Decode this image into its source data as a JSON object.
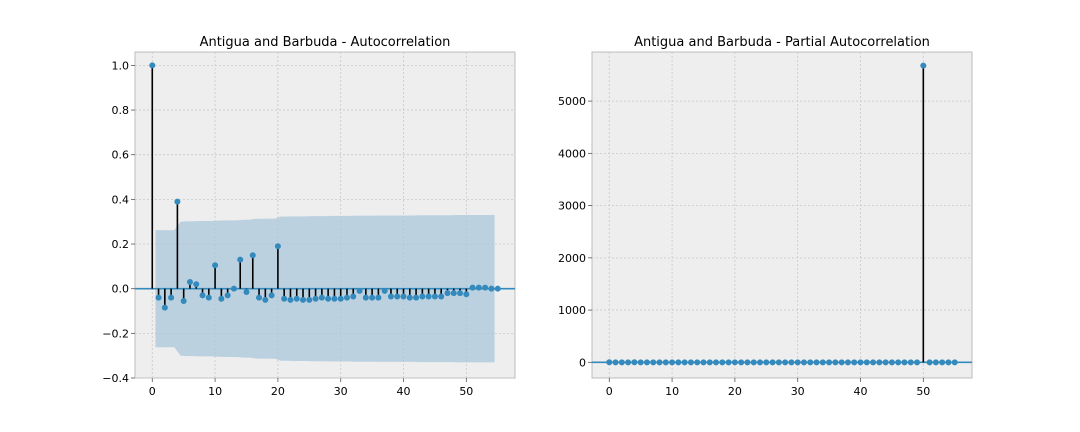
{
  "chart_data": [
    {
      "type": "stem",
      "title": "Antigua and Barbuda - Autocorrelation",
      "xlim": [
        -2.75,
        57.75
      ],
      "ylim": [
        -0.4,
        1.06
      ],
      "xticks": [
        0,
        10,
        20,
        30,
        40,
        50
      ],
      "yticks": [
        -0.4,
        -0.2,
        0.0,
        0.2,
        0.4,
        0.6,
        0.8,
        1.0
      ],
      "ytick_labels": [
        "−0.4",
        "−0.2",
        "0.0",
        "0.2",
        "0.4",
        "0.6",
        "0.8",
        "1.0"
      ],
      "lags": [
        0,
        1,
        2,
        3,
        4,
        5,
        6,
        7,
        8,
        9,
        10,
        11,
        12,
        13,
        14,
        15,
        16,
        17,
        18,
        19,
        20,
        21,
        22,
        23,
        24,
        25,
        26,
        27,
        28,
        29,
        30,
        31,
        32,
        33,
        34,
        35,
        36,
        37,
        38,
        39,
        40,
        41,
        42,
        43,
        44,
        45,
        46,
        47,
        48,
        49,
        50,
        51,
        52,
        53,
        54,
        55
      ],
      "values": [
        1.0,
        -0.04,
        -0.085,
        -0.04,
        0.39,
        -0.055,
        0.03,
        0.02,
        -0.03,
        -0.04,
        0.105,
        -0.045,
        -0.03,
        0.0,
        0.13,
        -0.015,
        0.15,
        -0.04,
        -0.05,
        -0.03,
        0.19,
        -0.045,
        -0.05,
        -0.045,
        -0.05,
        -0.05,
        -0.045,
        -0.04,
        -0.045,
        -0.045,
        -0.045,
        -0.04,
        -0.035,
        -0.01,
        -0.04,
        -0.04,
        -0.04,
        -0.01,
        -0.035,
        -0.035,
        -0.035,
        -0.04,
        -0.04,
        -0.035,
        -0.035,
        -0.035,
        -0.035,
        -0.02,
        -0.02,
        -0.02,
        -0.025,
        0.005,
        0.005,
        0.005,
        0.0,
        0.0
      ],
      "confidence_band": {
        "lags": [
          1,
          2,
          3,
          4,
          5,
          6,
          7,
          8,
          9,
          10,
          11,
          12,
          13,
          14,
          15,
          16,
          17,
          18,
          19,
          20,
          21,
          22,
          23,
          24,
          25,
          26,
          27,
          28,
          29,
          30,
          31,
          32,
          33,
          34,
          35,
          36,
          37,
          38,
          39,
          40,
          41,
          42,
          43,
          44,
          45,
          46,
          47,
          48,
          49,
          50,
          51,
          52,
          53,
          54,
          55
        ],
        "upper": [
          0.262,
          0.262,
          0.262,
          0.262,
          0.3,
          0.302,
          0.302,
          0.303,
          0.303,
          0.303,
          0.305,
          0.306,
          0.306,
          0.306,
          0.309,
          0.309,
          0.313,
          0.313,
          0.314,
          0.314,
          0.323,
          0.323,
          0.324,
          0.324,
          0.324,
          0.325,
          0.325,
          0.325,
          0.326,
          0.326,
          0.326,
          0.326,
          0.327,
          0.327,
          0.327,
          0.327,
          0.328,
          0.328,
          0.328,
          0.328,
          0.328,
          0.328,
          0.329,
          0.329,
          0.329,
          0.329,
          0.329,
          0.329,
          0.33,
          0.33,
          0.33,
          0.33,
          0.33,
          0.33,
          0.33
        ]
      },
      "stem_color": "#000000",
      "marker_color": "#348abd",
      "band_color": "#a7c5da",
      "baseline_color": "#348abd",
      "grid": true
    },
    {
      "type": "stem",
      "title": "Antigua and Barbuda - Partial Autocorrelation",
      "xlim": [
        -2.75,
        57.75
      ],
      "ylim": [
        -300,
        5940
      ],
      "xticks": [
        0,
        10,
        20,
        30,
        40,
        50
      ],
      "yticks": [
        0,
        1000,
        2000,
        3000,
        4000,
        5000
      ],
      "ytick_labels": [
        "0",
        "1000",
        "2000",
        "3000",
        "4000",
        "5000"
      ],
      "lags": [
        0,
        1,
        2,
        3,
        4,
        5,
        6,
        7,
        8,
        9,
        10,
        11,
        12,
        13,
        14,
        15,
        16,
        17,
        18,
        19,
        20,
        21,
        22,
        23,
        24,
        25,
        26,
        27,
        28,
        29,
        30,
        31,
        32,
        33,
        34,
        35,
        36,
        37,
        38,
        39,
        40,
        41,
        42,
        43,
        44,
        45,
        46,
        47,
        48,
        49,
        50,
        51,
        52,
        53,
        54,
        55
      ],
      "values": [
        1,
        -0.04,
        -0.09,
        -0.03,
        0.4,
        -0.16,
        0.09,
        -0.02,
        -0.05,
        0.03,
        0.1,
        -0.1,
        0.01,
        -0.02,
        0.17,
        -0.1,
        0.14,
        -0.1,
        0.01,
        -0.05,
        0.25,
        -0.2,
        0.1,
        -0.07,
        0.0,
        -0.08,
        0.04,
        -0.03,
        -0.05,
        -0.05,
        0.0,
        -0.04,
        0.01,
        0.05,
        -0.07,
        0.0,
        -0.05,
        0.04,
        -0.04,
        0.02,
        0.0,
        -0.05,
        0.0,
        0.02,
        0.0,
        0.02,
        -0.04,
        0.0,
        0.01,
        0.0,
        5680,
        -0.5,
        -0.3,
        -0.2,
        -0.1,
        -0.05
      ],
      "stem_color": "#000000",
      "marker_color": "#348abd",
      "baseline_color": "#348abd",
      "grid": true
    }
  ]
}
